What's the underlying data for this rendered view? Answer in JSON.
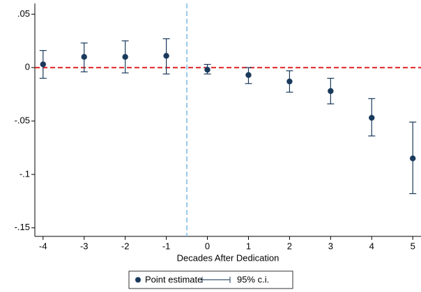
{
  "chart_data": {
    "type": "errorbar",
    "xlabel": "Decades After Dedication",
    "x": [
      -4,
      -3,
      -2,
      -1,
      0,
      1,
      2,
      3,
      4,
      5
    ],
    "series": [
      {
        "name": "Point estimate",
        "color": "#1a3a5c",
        "values": [
          0.003,
          0.01,
          0.01,
          0.011,
          -0.002,
          -0.007,
          -0.013,
          -0.022,
          -0.047,
          -0.085
        ]
      }
    ],
    "ci": {
      "name": "95% c.i.",
      "color": "#1a3a5c",
      "upper": [
        0.016,
        0.023,
        0.025,
        0.027,
        0.003,
        0.0,
        -0.003,
        -0.01,
        -0.029,
        -0.051
      ],
      "lower": [
        -0.01,
        -0.004,
        -0.005,
        -0.006,
        -0.006,
        -0.015,
        -0.023,
        -0.034,
        -0.064,
        -0.118
      ]
    },
    "xlim": [
      -4.2,
      5.2
    ],
    "ylim": [
      -0.158,
      0.06
    ],
    "xticks": [
      -4,
      -3,
      -2,
      -1,
      0,
      1,
      2,
      3,
      4,
      5
    ],
    "yticks": [
      {
        "value": 0.05,
        "label": ".05"
      },
      0,
      {
        "value": -0.05,
        "label": "-.05"
      },
      {
        "value": -0.1,
        "label": "-.1"
      },
      {
        "value": -0.15,
        "label": "-.15"
      }
    ],
    "hline": {
      "value": 0,
      "color": "#e02020"
    },
    "vline": {
      "value": -0.5,
      "color": "#7ab8e6"
    }
  }
}
